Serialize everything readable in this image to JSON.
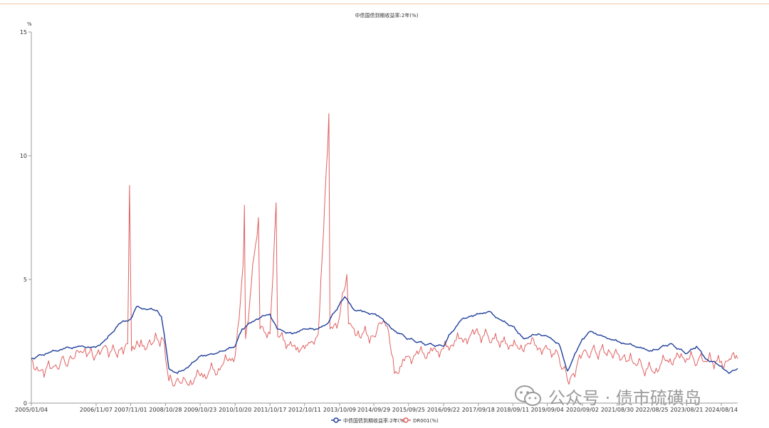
{
  "chart_data": {
    "type": "line",
    "title": "中债国债到期收益率:2年(%)",
    "ylabel": "%",
    "ylim": [
      0,
      15
    ],
    "yticks": [
      "0",
      "5",
      "10",
      "15"
    ],
    "categories": [
      "2005/01/04",
      "2006/11/07",
      "2007/11/01",
      "2008/10/28",
      "2009/10/23",
      "2010/10/20",
      "2011/10/17",
      "2012/10/11",
      "2013/10/09",
      "2014/09/29",
      "2015/09/25",
      "2016/09/22",
      "2017/09/18",
      "2018/09/11",
      "2019/09/04",
      "2020/09/02",
      "2021/08/30",
      "2022/08/25",
      "2023/08/21",
      "2024/08/14"
    ],
    "x_start": "2005/01/04",
    "x_end": "2025/01/31",
    "series": [
      {
        "name": "中债国债到期收益率:2年(%)",
        "color": "#1f3f9a",
        "points": [
          [
            "2005-01-04",
            1.8
          ],
          [
            "2005-06-01",
            2.0
          ],
          [
            "2005-12-01",
            2.2
          ],
          [
            "2006-06-01",
            2.3
          ],
          [
            "2006-11-01",
            2.25
          ],
          [
            "2007-03-01",
            2.6
          ],
          [
            "2007-07-01",
            3.2
          ],
          [
            "2007-11-01",
            3.4
          ],
          [
            "2008-01-01",
            3.9
          ],
          [
            "2008-04-01",
            3.8
          ],
          [
            "2008-08-01",
            3.75
          ],
          [
            "2008-09-15",
            3.5
          ],
          [
            "2008-10-28",
            2.4
          ],
          [
            "2008-12-01",
            1.4
          ],
          [
            "2009-03-01",
            1.2
          ],
          [
            "2009-07-01",
            1.5
          ],
          [
            "2009-10-23",
            1.9
          ],
          [
            "2010-04-01",
            2.0
          ],
          [
            "2010-10-20",
            2.3
          ],
          [
            "2011-01-01",
            3.0
          ],
          [
            "2011-06-01",
            3.4
          ],
          [
            "2011-10-17",
            3.6
          ],
          [
            "2012-01-01",
            3.0
          ],
          [
            "2012-06-01",
            2.8
          ],
          [
            "2012-10-11",
            3.0
          ],
          [
            "2013-03-01",
            3.0
          ],
          [
            "2013-06-01",
            3.2
          ],
          [
            "2013-10-09",
            4.0
          ],
          [
            "2013-12-01",
            4.3
          ],
          [
            "2014-03-01",
            3.8
          ],
          [
            "2014-06-01",
            3.7
          ],
          [
            "2014-09-29",
            3.6
          ],
          [
            "2015-01-01",
            3.4
          ],
          [
            "2015-04-01",
            3.0
          ],
          [
            "2015-09-25",
            2.6
          ],
          [
            "2016-03-01",
            2.4
          ],
          [
            "2016-09-22",
            2.3
          ],
          [
            "2016-12-01",
            2.8
          ],
          [
            "2017-04-01",
            3.4
          ],
          [
            "2017-09-18",
            3.6
          ],
          [
            "2018-01-01",
            3.7
          ],
          [
            "2018-06-01",
            3.3
          ],
          [
            "2018-09-11",
            3.1
          ],
          [
            "2019-01-01",
            2.6
          ],
          [
            "2019-06-01",
            2.8
          ],
          [
            "2019-09-04",
            2.7
          ],
          [
            "2020-01-01",
            2.4
          ],
          [
            "2020-04-01",
            1.3
          ],
          [
            "2020-09-02",
            2.6
          ],
          [
            "2020-12-01",
            2.9
          ],
          [
            "2021-04-01",
            2.7
          ],
          [
            "2021-08-30",
            2.5
          ],
          [
            "2022-03-01",
            2.3
          ],
          [
            "2022-08-25",
            2.1
          ],
          [
            "2023-03-01",
            2.4
          ],
          [
            "2023-08-21",
            2.0
          ],
          [
            "2023-12-01",
            2.3
          ],
          [
            "2024-03-01",
            1.8
          ],
          [
            "2024-08-14",
            1.5
          ],
          [
            "2024-11-01",
            1.2
          ],
          [
            "2025-01-31",
            1.4
          ]
        ]
      },
      {
        "name": "DR001(%)",
        "color": "#e06060",
        "points": [
          [
            "2005-01-04",
            1.8
          ],
          [
            "2005-04-01",
            1.3
          ],
          [
            "2005-09-01",
            1.5
          ],
          [
            "2006-03-01",
            1.8
          ],
          [
            "2006-06-01",
            2.1
          ],
          [
            "2006-11-01",
            1.9
          ],
          [
            "2007-02-01",
            2.3
          ],
          [
            "2007-06-01",
            2.0
          ],
          [
            "2007-10-01",
            2.4
          ],
          [
            "2007-10-20",
            8.8
          ],
          [
            "2007-11-10",
            2.1
          ],
          [
            "2008-03-01",
            2.3
          ],
          [
            "2008-07-01",
            2.5
          ],
          [
            "2008-10-01",
            2.6
          ],
          [
            "2008-10-28",
            1.8
          ],
          [
            "2008-12-01",
            0.9
          ],
          [
            "2009-06-01",
            0.85
          ],
          [
            "2009-10-23",
            1.1
          ],
          [
            "2010-05-01",
            1.4
          ],
          [
            "2010-10-20",
            1.9
          ],
          [
            "2011-01-10",
            5.5
          ],
          [
            "2011-01-25",
            8.0
          ],
          [
            "2011-02-05",
            2.6
          ],
          [
            "2011-06-20",
            7.5
          ],
          [
            "2011-07-05",
            3.0
          ],
          [
            "2011-10-17",
            2.8
          ],
          [
            "2011-12-20",
            8.1
          ],
          [
            "2012-01-05",
            2.7
          ],
          [
            "2012-06-01",
            2.3
          ],
          [
            "2012-10-11",
            2.2
          ],
          [
            "2013-03-01",
            2.8
          ],
          [
            "2013-06-20",
            11.7
          ],
          [
            "2013-07-01",
            3.0
          ],
          [
            "2013-10-09",
            3.5
          ],
          [
            "2013-12-23",
            5.2
          ],
          [
            "2014-01-10",
            3.2
          ],
          [
            "2014-06-01",
            2.8
          ],
          [
            "2014-09-29",
            2.7
          ],
          [
            "2015-01-01",
            3.3
          ],
          [
            "2015-03-01",
            2.9
          ],
          [
            "2015-05-01",
            1.2
          ],
          [
            "2015-09-25",
            1.9
          ],
          [
            "2016-03-01",
            2.0
          ],
          [
            "2016-09-22",
            2.2
          ],
          [
            "2017-03-01",
            2.6
          ],
          [
            "2017-09-18",
            2.8
          ],
          [
            "2018-03-01",
            2.6
          ],
          [
            "2018-09-11",
            2.3
          ],
          [
            "2019-03-01",
            2.4
          ],
          [
            "2019-09-04",
            2.2
          ],
          [
            "2020-01-01",
            1.9
          ],
          [
            "2020-04-01",
            0.9
          ],
          [
            "2020-06-01",
            1.2
          ],
          [
            "2020-09-02",
            2.0
          ],
          [
            "2021-03-01",
            2.1
          ],
          [
            "2021-08-30",
            2.0
          ],
          [
            "2022-03-01",
            1.6
          ],
          [
            "2022-08-25",
            1.3
          ],
          [
            "2023-03-01",
            1.8
          ],
          [
            "2023-08-21",
            1.8
          ],
          [
            "2024-03-01",
            1.7
          ],
          [
            "2024-08-14",
            1.7
          ],
          [
            "2025-01-31",
            1.8
          ]
        ]
      }
    ]
  },
  "watermark": {
    "text": "公众号 · 债市硫磺岛",
    "icon": "wechat-icon"
  }
}
